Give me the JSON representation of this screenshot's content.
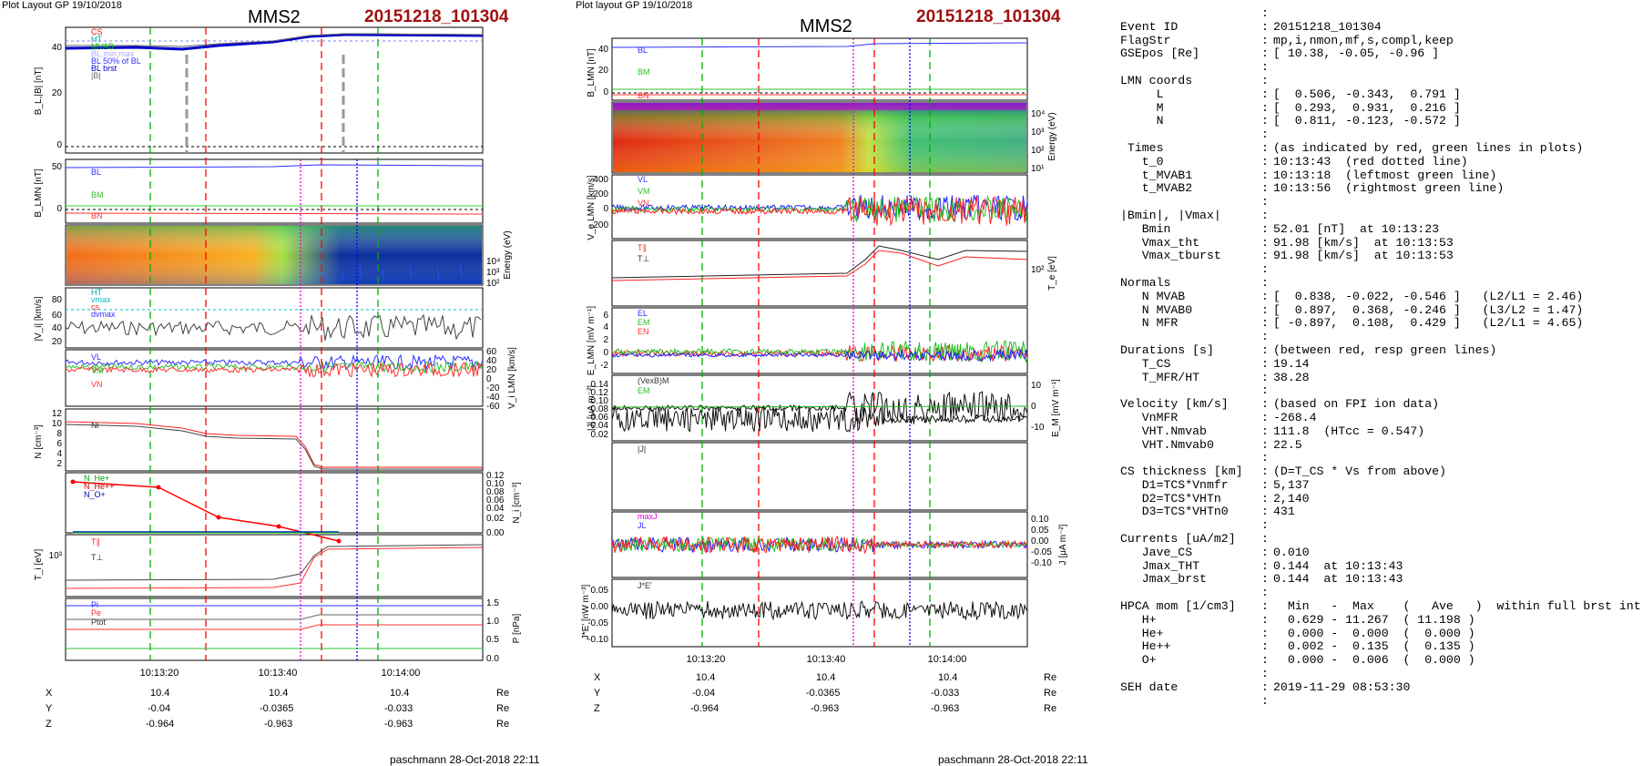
{
  "left_plot": {
    "header": "Plot Layout GP 19/10/2018",
    "spacecraft": "MMS2",
    "event": "20151218_101304",
    "time_ticks": [
      "10:13:20",
      "10:13:40",
      "10:14:00"
    ],
    "coord_rows": [
      {
        "axis": "X",
        "values": [
          "10.4",
          "10.4",
          "10.4"
        ],
        "unit": "Re"
      },
      {
        "axis": "Y",
        "values": [
          "-0.04",
          "-0.0365",
          "-0.033"
        ],
        "unit": "Re"
      },
      {
        "axis": "Z",
        "values": [
          "-0.964",
          "-0.963",
          "-0.963"
        ],
        "unit": "Re"
      }
    ],
    "footer": "paschmann 28-Oct-2018 22:11",
    "panels": [
      {
        "ylabel": "B_L,|B| [nT]",
        "ticks": [
          "40",
          "20",
          "0"
        ],
        "legend": [
          "CS",
          "HT",
          "MVAB",
          "BL,min,max",
          "BL 50% of BL",
          "BL brst",
          "|B|"
        ]
      },
      {
        "ylabel": "B_LMN [nT]",
        "ticks": [
          "50",
          "0"
        ],
        "legend": [
          "BL",
          "BM",
          "BN"
        ]
      },
      {
        "ylabel": "Energy (eV)",
        "ticks": [
          "10⁴",
          "10³",
          "10²"
        ],
        "legend": []
      },
      {
        "ylabel": "|V_i| [km/s]",
        "ticks": [
          "80",
          "60",
          "40",
          "20"
        ],
        "legend": [
          "HT",
          "vmax",
          "cs",
          "dvmax"
        ]
      },
      {
        "ylabel": "V_i LMN [km/s]",
        "ticks": [
          "60",
          "40",
          "20",
          "0",
          "-20",
          "-40",
          "-60"
        ],
        "legend": [
          "VL",
          "VM",
          "VN"
        ]
      },
      {
        "ylabel": "N [cm⁻³]",
        "ticks": [
          "12",
          "10",
          "8",
          "6",
          "4",
          "2"
        ],
        "legend": [
          "Ni"
        ]
      },
      {
        "ylabel": "N_i [cm⁻³]",
        "ticks": [
          "0.12",
          "0.10",
          "0.08",
          "0.06",
          "0.04",
          "0.02",
          "0.00"
        ],
        "legend": [
          "N_He+",
          "N_He++",
          "N_O+"
        ]
      },
      {
        "ylabel": "T_i [eV]",
        "ticks": [
          "10³"
        ],
        "legend": [
          "T∥",
          "T⊥"
        ]
      },
      {
        "ylabel": "P [nPa]",
        "ticks": [
          "1.5",
          "1.0",
          "0.5",
          "0.0"
        ],
        "legend": [
          "Pi",
          "Pe",
          "Ptot"
        ]
      }
    ]
  },
  "middle_plot": {
    "header": "Plot layout GP 19/10/2018",
    "spacecraft": "MMS2",
    "event": "20151218_101304",
    "time_ticks": [
      "10:13:20",
      "10:13:40",
      "10:14:00"
    ],
    "coord_rows": [
      {
        "axis": "X",
        "values": [
          "10.4",
          "10.4",
          "10.4"
        ],
        "unit": "Re"
      },
      {
        "axis": "Y",
        "values": [
          "-0.04",
          "-0.0365",
          "-0.033"
        ],
        "unit": "Re"
      },
      {
        "axis": "Z",
        "values": [
          "-0.964",
          "-0.963",
          "-0.963"
        ],
        "unit": "Re"
      }
    ],
    "footer": "paschmann 28-Oct-2018 22:11",
    "panels": [
      {
        "ylabel": "B_LMN [nT]",
        "ticks": [
          "40",
          "20",
          "0"
        ],
        "legend": [
          "BL",
          "BM",
          "BN"
        ]
      },
      {
        "ylabel": "Energy (eV)",
        "ticks": [
          "10⁴",
          "10³",
          "10²",
          "10¹"
        ],
        "legend": []
      },
      {
        "ylabel": "V_e LMN [km/s]",
        "ticks": [
          "400",
          "200",
          "0",
          "-200"
        ],
        "legend": [
          "VL",
          "VM",
          "VN"
        ]
      },
      {
        "ylabel": "T_e [eV]",
        "ticks": [
          "10²"
        ],
        "legend": [
          "T∥",
          "T⊥"
        ]
      },
      {
        "ylabel": "E_LMN [mV m⁻¹]",
        "ticks": [
          "6",
          "4",
          "2",
          "0",
          "-2"
        ],
        "legend": [
          "EL",
          "EM",
          "EN"
        ]
      },
      {
        "ylabel": "E_M [mV m⁻¹]",
        "ticks": [
          "10",
          "0",
          "-10"
        ],
        "legend": [
          "(VexB)M",
          "EM"
        ]
      },
      {
        "ylabel": "|J| [μA m⁻²]",
        "ticks": [
          "0.14",
          "0.12",
          "0.10",
          "0.08",
          "0.06",
          "0.04",
          "0.02"
        ],
        "legend": [
          "|J|"
        ]
      },
      {
        "ylabel": "J [μA m⁻²]",
        "ticks": [
          "0.10",
          "0.05",
          "0.00",
          "-0.05",
          "-0.10"
        ],
        "legend": [
          "maxJ",
          "JL"
        ]
      },
      {
        "ylabel": "J*E' [nW m⁻³]",
        "ticks": [
          "0.05",
          "0.00",
          "-0.05",
          "-0.10"
        ],
        "legend": [
          "J*E'"
        ]
      }
    ]
  },
  "summary": {
    "rows": [
      {
        "k": "",
        "v": ""
      },
      {
        "k": "Event ID",
        "v": "20151218_101304"
      },
      {
        "k": "FlagStr",
        "v": "mp,i,nmon,mf,s,compl,keep"
      },
      {
        "k": "GSEpos [Re]",
        "v": "[ 10.38, -0.05, -0.96 ]"
      },
      {
        "k": "",
        "v": ""
      },
      {
        "k": "LMN coords",
        "v": ""
      },
      {
        "k": "     L",
        "v": "[  0.506, -0.343,  0.791 ]"
      },
      {
        "k": "     M",
        "v": "[  0.293,  0.931,  0.216 ]"
      },
      {
        "k": "     N",
        "v": "[  0.811, -0.123, -0.572 ]"
      },
      {
        "k": "",
        "v": ""
      },
      {
        "k": " Times",
        "v": "(as indicated by red, green lines in plots)"
      },
      {
        "k": "   t_0",
        "v": "10:13:43  (red dotted line)"
      },
      {
        "k": "   t_MVAB1",
        "v": "10:13:18  (leftmost green line)"
      },
      {
        "k": "   t_MVAB2",
        "v": "10:13:56  (rightmost green line)"
      },
      {
        "k": "",
        "v": ""
      },
      {
        "k": "|Bmin|, |Vmax|",
        "v": ""
      },
      {
        "k": "   Bmin",
        "v": "52.01 [nT]  at 10:13:23"
      },
      {
        "k": "   Vmax_tht",
        "v": "91.98 [km/s]  at 10:13:53"
      },
      {
        "k": "   Vmax_tburst",
        "v": "91.98 [km/s]  at 10:13:53"
      },
      {
        "k": "",
        "v": ""
      },
      {
        "k": "Normals",
        "v": ""
      },
      {
        "k": "   N MVAB",
        "v": "[  0.838, -0.022, -0.546 ]   (L2/L1 = 2.46)"
      },
      {
        "k": "   N MVAB0",
        "v": "[  0.897,  0.368, -0.246 ]   (L3/L2 = 1.47)"
      },
      {
        "k": "   N MFR",
        "v": "[ -0.897,  0.108,  0.429 ]   (L2/L1 = 4.65)"
      },
      {
        "k": "",
        "v": ""
      },
      {
        "k": "Durations [s]",
        "v": "(between red, resp green lines)"
      },
      {
        "k": "   T_CS",
        "v": "19.14"
      },
      {
        "k": "   T_MFR/HT",
        "v": "38.28"
      },
      {
        "k": "",
        "v": ""
      },
      {
        "k": "Velocity [km/s]",
        "v": "(based on FPI ion data)"
      },
      {
        "k": "   VnMFR",
        "v": "-268.4"
      },
      {
        "k": "   VHT.Nmvab",
        "v": "111.8  (HTcc = 0.547)"
      },
      {
        "k": "   VHT.Nmvab0",
        "v": "22.5"
      },
      {
        "k": "",
        "v": ""
      },
      {
        "k": "CS thickness [km]",
        "v": "(D=T_CS * Vs from above)"
      },
      {
        "k": "   D1=TCS*Vnmfr",
        "v": "5,137"
      },
      {
        "k": "   D2=TCS*VHTn",
        "v": "2,140"
      },
      {
        "k": "   D3=TCS*VHTn0",
        "v": "431"
      },
      {
        "k": "",
        "v": ""
      },
      {
        "k": "Currents [uA/m2]",
        "v": ""
      },
      {
        "k": "   Jave_CS",
        "v": "0.010"
      },
      {
        "k": "   Jmax_THT",
        "v": "0.144  at 10:13:43"
      },
      {
        "k": "   Jmax_brst",
        "v": "0.144  at 10:13:43"
      },
      {
        "k": "",
        "v": ""
      },
      {
        "k": "HPCA mom [1/cm3]",
        "v": "  Min   -  Max    (   Ave   )  within full brst int"
      },
      {
        "k": "   H+",
        "v": "  0.629 - 11.267  ( 11.198 )"
      },
      {
        "k": "   He+",
        "v": "  0.000 -  0.000  (  0.000 )"
      },
      {
        "k": "   He++",
        "v": "  0.002 -  0.135  (  0.135 )"
      },
      {
        "k": "   O+",
        "v": "  0.000 -  0.006  (  0.000 )"
      },
      {
        "k": "",
        "v": ""
      },
      {
        "k": "SEH date",
        "v": "2019-11-29 08:53:30"
      },
      {
        "k": "",
        "v": ""
      }
    ]
  },
  "colors": {
    "event": "#a01010",
    "blue": "#0000ff",
    "green": "#00c000",
    "red": "#ff0000",
    "magenta": "#e000e0",
    "gray": "#999999"
  },
  "chart_data": [
    {
      "type": "line",
      "title": "MMS2",
      "xlabel": "",
      "x_ticks": [
        "10:13:20",
        "10:13:40",
        "10:14:00"
      ],
      "xlim_seconds_after_10:13:00": [
        6,
        73
      ],
      "panels": [
        {
          "name": "B_L,|B|",
          "ylim": [
            0,
            60
          ],
          "series": [
            {
              "name": "BL brst",
              "x": [
                6,
                15,
                25,
                35,
                40,
                45,
                73
              ],
              "values": [
                46,
                47,
                48,
                50,
                54,
                56,
                56
              ]
            },
            {
              "name": "|B|",
              "x": [
                6,
                15,
                25,
                35,
                40,
                45,
                73
              ],
              "values": [
                47,
                48,
                49,
                51,
                55,
                57,
                57
              ]
            }
          ]
        },
        {
          "name": "N",
          "ylim": [
            0,
            12
          ],
          "series": [
            {
              "name": "Ni",
              "x": [
                6,
                20,
                28,
                37,
                42,
                45,
                48,
                73
              ],
              "values": [
                10.6,
                10.2,
                8.8,
                8.5,
                7.5,
                2.5,
                1.2,
                1.1
              ]
            }
          ]
        },
        {
          "name": "N_i",
          "ylim": [
            0,
            0.12
          ],
          "series": [
            {
              "name": "N_He++",
              "x": [
                7,
                22,
                24,
                35,
                45
              ],
              "values": [
                0.125,
                0.12,
                0.045,
                0.03,
                0.0
              ]
            },
            {
              "name": "N_He+",
              "x": [
                7,
                22,
                24,
                35,
                45
              ],
              "values": [
                0.0,
                0.0,
                0.0,
                0.0,
                0.0
              ]
            },
            {
              "name": "N_O+",
              "x": [
                7,
                22,
                24,
                35,
                45
              ],
              "values": [
                0.0,
                0.0,
                0.0,
                0.0,
                0.0
              ]
            }
          ]
        }
      ],
      "vertical_markers": {
        "red_dashed": [
          28,
          41
        ],
        "green_dashed": [
          18,
          56
        ],
        "magenta_dotted": [
          38
        ],
        "blue_dotted": [
          50
        ]
      }
    }
  ]
}
